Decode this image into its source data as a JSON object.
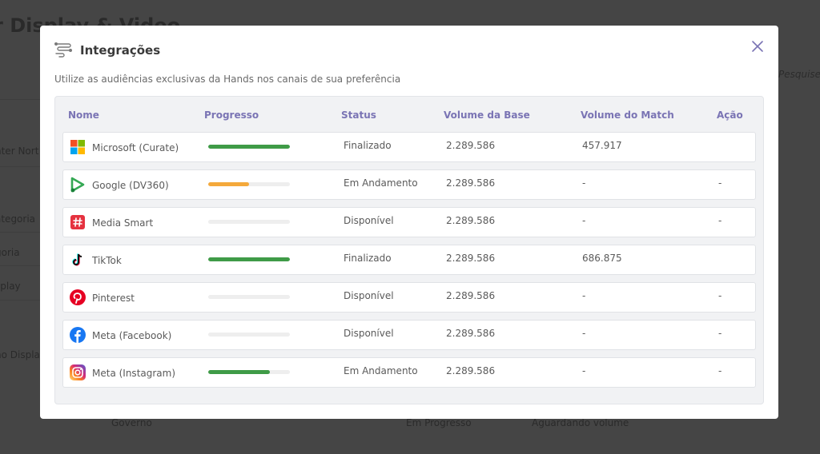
{
  "background": {
    "title": "r Display & Video",
    "search_hint": "Pesquise",
    "side_items": [
      "nter Nort",
      "ategoria",
      "goria",
      "splay",
      "no Displa"
    ],
    "bottom_items": [
      "Governo",
      "Em Progresso",
      "Aguardando volume"
    ]
  },
  "modal": {
    "title": "Integrações",
    "subtitle": "Utilize as audiências exclusivas da Hands nos canais de sua preferência",
    "columns": {
      "name": "Nome",
      "progress": "Progresso",
      "status": "Status",
      "base_volume": "Volume da Base",
      "match_volume": "Volume do Match",
      "action": "Ação"
    },
    "rows": [
      {
        "name": "Microsoft (Curate)",
        "logo": "microsoft-icon",
        "progress": 1.0,
        "progress_color": "#3f9b47",
        "status": "Finalizado",
        "base_volume": "2.289.586",
        "match_volume": "457.917",
        "action": ""
      },
      {
        "name": "Google (DV360)",
        "logo": "google-dv360-icon",
        "progress": 0.5,
        "progress_color": "#f4a93b",
        "status": "Em Andamento",
        "base_volume": "2.289.586",
        "match_volume": "-",
        "action": "-"
      },
      {
        "name": "Media Smart",
        "logo": "hashtag-icon",
        "progress": 0,
        "progress_color": "#3f9b47",
        "status": "Disponível",
        "base_volume": "2.289.586",
        "match_volume": "-",
        "action": "-"
      },
      {
        "name": "TikTok",
        "logo": "tiktok-icon",
        "progress": 1.0,
        "progress_color": "#3f9b47",
        "status": "Finalizado",
        "base_volume": "2.289.586",
        "match_volume": "686.875",
        "action": ""
      },
      {
        "name": "Pinterest",
        "logo": "pinterest-icon",
        "progress": 0,
        "progress_color": "#3f9b47",
        "status": "Disponível",
        "base_volume": "2.289.586",
        "match_volume": "-",
        "action": "-"
      },
      {
        "name": "Meta (Facebook)",
        "logo": "facebook-icon",
        "progress": 0,
        "progress_color": "#3f9b47",
        "status": "Disponível",
        "base_volume": "2.289.586",
        "match_volume": "-",
        "action": "-"
      },
      {
        "name": "Meta (Instagram)",
        "logo": "instagram-icon",
        "progress": 0.75,
        "progress_color": "#3f9b47",
        "status": "Em Andamento",
        "base_volume": "2.289.586",
        "match_volume": "-",
        "action": "-"
      }
    ]
  },
  "colors": {
    "accent": "#7a74b4",
    "overlay": "#454545",
    "complete": "#3f9b47",
    "in_progress": "#f4a93b"
  }
}
